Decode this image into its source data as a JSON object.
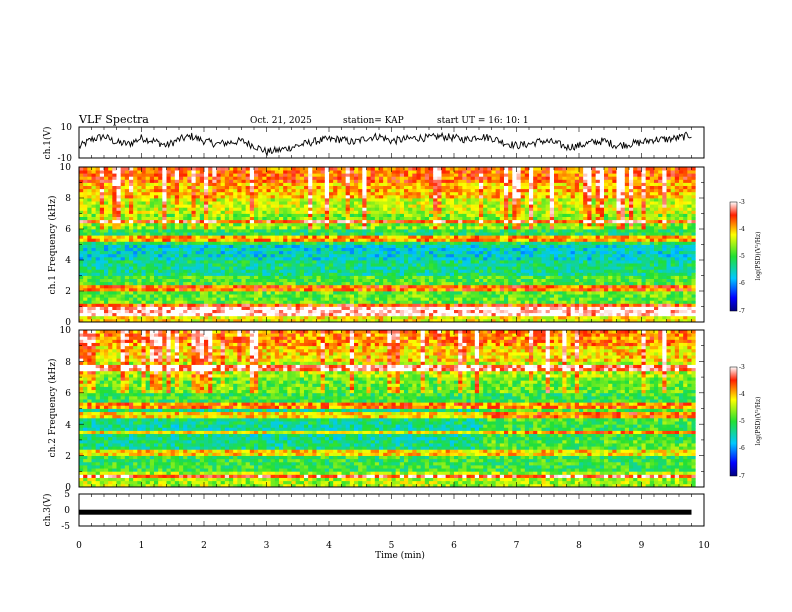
{
  "header": {
    "title": "VLF Spectra",
    "date": "Oct. 21, 2025",
    "station": "station= KAP",
    "start_ut": "start UT =  16: 10: 1"
  },
  "chart_data": [
    {
      "type": "line",
      "name": "ch1-voltage",
      "ylabel": "ch.1(V)",
      "ylim": [
        -10,
        10
      ],
      "y_ticks": [
        "10",
        "-10"
      ],
      "xlim": [
        0,
        10
      ],
      "x": [
        0,
        0.2,
        0.4,
        0.6,
        0.8,
        1.0,
        1.2,
        1.4,
        1.6,
        1.8,
        2.0,
        2.2,
        2.4,
        2.6,
        2.8,
        3.0,
        3.2,
        3.4,
        3.6,
        3.8,
        4.0,
        4.2,
        4.4,
        4.6,
        4.8,
        5.0,
        5.2,
        5.4,
        5.6,
        5.8,
        6.0,
        6.2,
        6.4,
        6.6,
        6.8,
        7.0,
        7.2,
        7.4,
        7.6,
        7.8,
        8.0,
        8.2,
        8.4,
        8.6,
        8.8,
        9.0,
        9.2,
        9.4,
        9.6,
        9.8
      ],
      "values": [
        -3,
        2,
        4,
        0,
        -1,
        3,
        1,
        -2,
        2,
        4,
        1,
        -1,
        0,
        1,
        -2,
        -6,
        -5,
        -3,
        -1,
        1,
        2,
        2,
        0,
        3,
        4,
        1,
        2,
        3,
        3,
        4,
        3,
        2,
        4,
        3,
        0,
        -2,
        -1,
        1,
        0,
        -3,
        -2,
        0,
        1,
        -2,
        -1,
        0,
        2,
        2,
        3,
        5
      ]
    },
    {
      "type": "heatmap",
      "name": "ch1-spectrogram",
      "ylabel": "ch.1 Frequency (kHz)",
      "ylim": [
        0,
        10
      ],
      "y_ticks": [
        "0",
        "2",
        "4",
        "6",
        "8",
        "10"
      ],
      "xlim": [
        0,
        10
      ],
      "colorbar": {
        "label": "log(PSD)(V²/Hz)",
        "range": [
          -7,
          -3
        ],
        "ticks": [
          "-3",
          "-4",
          "-5",
          "-6",
          "-7"
        ]
      },
      "freq_bands_khz": [
        0,
        1,
        2,
        3,
        4,
        5,
        6,
        7,
        8,
        9
      ],
      "band_log_psd": [
        -4.2,
        -4.8,
        -4.9,
        -5.3,
        -5.6,
        -5.1,
        -4.7,
        -4.4,
        -4.0,
        -3.7
      ],
      "lines_khz": [
        0.6,
        1.0,
        2.2,
        5.4,
        6.5
      ]
    },
    {
      "type": "heatmap",
      "name": "ch2-spectrogram",
      "ylabel": "ch.2 Frequency (kHz)",
      "ylim": [
        0,
        10
      ],
      "y_ticks": [
        "0",
        "2",
        "4",
        "6",
        "8",
        "10"
      ],
      "xlim": [
        0,
        10
      ],
      "colorbar": {
        "label": "log(PSD)(V²/Hz)",
        "range": [
          -7,
          -3
        ],
        "ticks": [
          "-3",
          "-4",
          "-5",
          "-6",
          "-7"
        ]
      },
      "freq_bands_khz": [
        0,
        1,
        2,
        3,
        4,
        5,
        6,
        7,
        8,
        9
      ],
      "band_log_psd": [
        -4.5,
        -5.0,
        -5.3,
        -5.4,
        -5.3,
        -5.0,
        -4.8,
        -4.5,
        -4.1,
        -3.8
      ],
      "lines_khz": [
        0.7,
        2.2,
        3.5,
        4.6,
        5.2,
        7.6
      ]
    },
    {
      "type": "line",
      "name": "ch3-voltage",
      "ylabel": "ch.3(V)",
      "ylim": [
        -5,
        5
      ],
      "y_ticks": [
        "5",
        "0",
        "-5"
      ],
      "xlim": [
        0,
        10
      ],
      "x": [
        0,
        9.8
      ],
      "values": [
        -0.7,
        -0.7
      ]
    }
  ],
  "x_axis": {
    "label": "Time (min)",
    "ticks": [
      "0",
      "1",
      "2",
      "3",
      "4",
      "5",
      "6",
      "7",
      "8",
      "9",
      "10"
    ]
  }
}
